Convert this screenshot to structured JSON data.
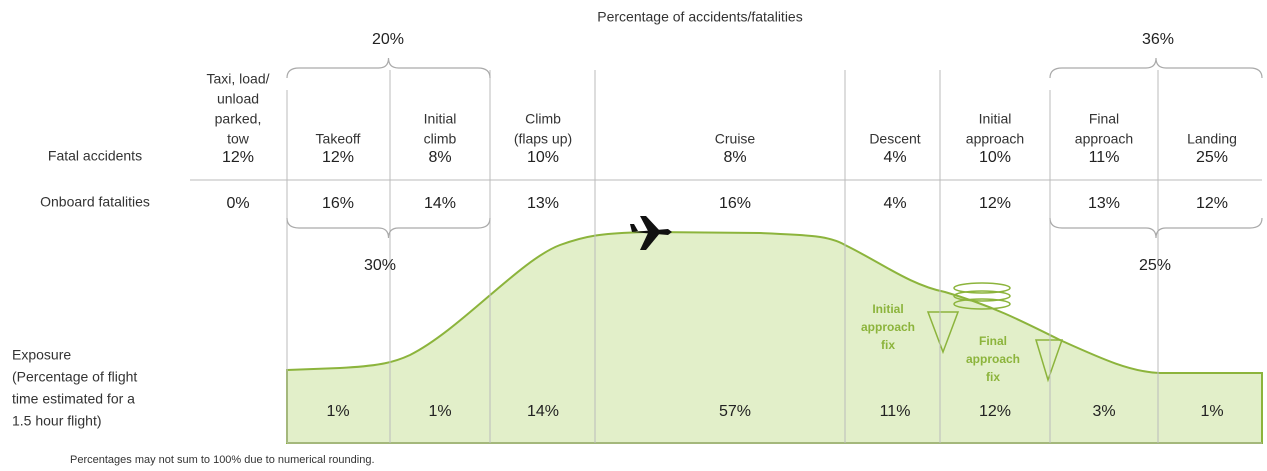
{
  "title": "Percentage of accidents/fatalities",
  "row_labels": {
    "fatal_accidents": "Fatal accidents",
    "onboard_fatalities": "Onboard fatalities",
    "exposure": [
      "Exposure",
      "(Percentage of flight",
      "time estimated for a",
      "1.5 hour flight)"
    ]
  },
  "phases": [
    {
      "name": [
        "Taxi, load/",
        "unload",
        "parked,",
        "tow"
      ],
      "fatal_accidents": "12%",
      "onboard_fatalities": "0%"
    },
    {
      "name": [
        "Takeoff"
      ],
      "fatal_accidents": "12%",
      "onboard_fatalities": "16%",
      "exposure": "1%"
    },
    {
      "name": [
        "Initial",
        "climb"
      ],
      "fatal_accidents": "8%",
      "onboard_fatalities": "14%",
      "exposure": "1%"
    },
    {
      "name": [
        "Climb",
        "(flaps up)"
      ],
      "fatal_accidents": "10%",
      "onboard_fatalities": "13%",
      "exposure": "14%"
    },
    {
      "name": [
        "Cruise"
      ],
      "fatal_accidents": "8%",
      "onboard_fatalities": "16%",
      "exposure": "57%"
    },
    {
      "name": [
        "Descent"
      ],
      "fatal_accidents": "4%",
      "onboard_fatalities": "4%",
      "exposure": "11%"
    },
    {
      "name": [
        "Initial",
        "approach"
      ],
      "fatal_accidents": "10%",
      "onboard_fatalities": "12%",
      "exposure": "12%"
    },
    {
      "name": [
        "Final",
        "approach"
      ],
      "fatal_accidents": "11%",
      "onboard_fatalities": "13%",
      "exposure": "3%"
    },
    {
      "name": [
        "Landing"
      ],
      "fatal_accidents": "25%",
      "onboard_fatalities": "12%",
      "exposure": "1%"
    }
  ],
  "groups": {
    "takeoff_climb_accidents": "20%",
    "takeoff_climb_fatalities": "30%",
    "approach_landing_accidents": "36%",
    "approach_landing_fatalities": "25%"
  },
  "annotations": {
    "initial_approach_fix": [
      "Initial",
      "approach",
      "fix"
    ],
    "final_approach_fix": [
      "Final",
      "approach",
      "fix"
    ]
  },
  "footnote": "Percentages may not sum to 100% due to numerical rounding."
}
